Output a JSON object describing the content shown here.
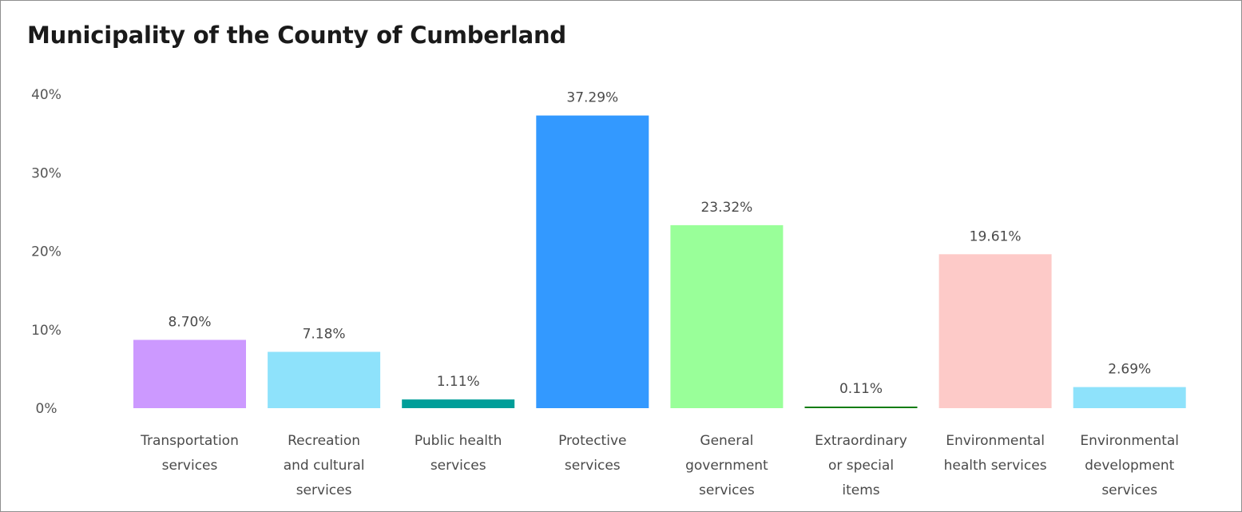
{
  "chart_data": {
    "type": "bar",
    "title": "Municipality of the County of Cumberland",
    "xlabel": "",
    "ylabel": "",
    "ylim": [
      0,
      40
    ],
    "yticks": [
      "0%",
      "10%",
      "20%",
      "30%",
      "40%"
    ],
    "ytick_values": [
      0,
      10,
      20,
      30,
      40
    ],
    "grid": false,
    "legend": "none",
    "categories": [
      [
        "Transportation",
        "services"
      ],
      [
        "Recreation",
        "and cultural",
        "services"
      ],
      [
        "Public health",
        "services"
      ],
      [
        "Protective",
        "services"
      ],
      [
        "General",
        "government",
        "services"
      ],
      [
        "Extraordinary",
        "or special",
        "items"
      ],
      [
        "Environmental",
        "health services"
      ],
      [
        "Environmental",
        "development",
        "services"
      ]
    ],
    "values": [
      8.7,
      7.18,
      1.11,
      37.29,
      23.32,
      0.11,
      19.61,
      2.69
    ],
    "value_labels": [
      "8.70%",
      "7.18%",
      "1.11%",
      "37.29%",
      "23.32%",
      "0.11%",
      "19.61%",
      "2.69%"
    ],
    "colors": [
      "#cc99ff",
      "#8ee2fb",
      "#009e99",
      "#3399ff",
      "#99ff99",
      "#107c10",
      "#fdcac8",
      "#8ee2fb"
    ]
  }
}
